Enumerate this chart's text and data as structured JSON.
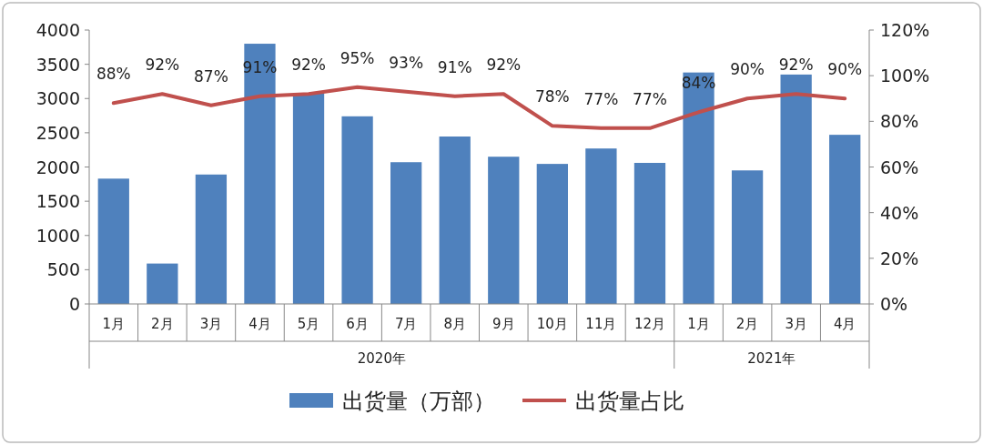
{
  "chart_data": {
    "type": "bar",
    "categories": [
      "1月",
      "2月",
      "3月",
      "4月",
      "5月",
      "6月",
      "7月",
      "8月",
      "9月",
      "10月",
      "11月",
      "12月",
      "1月",
      "2月",
      "3月",
      "4月"
    ],
    "annotations": [
      "2020年",
      "2021年"
    ],
    "series": [
      {
        "name": "出货量（万部）",
        "color": "#4f81bd",
        "values": [
          1830,
          590,
          1890,
          3800,
          3080,
          2740,
          2070,
          2445,
          2150,
          2045,
          2270,
          2060,
          3380,
          1950,
          3350,
          2470
        ]
      },
      {
        "name": "出货量占比",
        "type": "line",
        "axis": "y2",
        "color": "#c0504d",
        "values": [
          88,
          92,
          87,
          91,
          92,
          95,
          93,
          91,
          92,
          78,
          77,
          77,
          84,
          90,
          92,
          90
        ],
        "value_labels": [
          "88%",
          "92%",
          "87%",
          "91%",
          "92%",
          "95%",
          "93%",
          "91%",
          "92%",
          "78%",
          "77%",
          "77%",
          "84%",
          "90%",
          "92%",
          "90%"
        ]
      }
    ],
    "ylim": [
      0,
      4000
    ],
    "yticks": [
      0,
      500,
      1000,
      1500,
      2000,
      2500,
      3000,
      3500,
      4000
    ],
    "y2lim": [
      0,
      120
    ],
    "y2ticks": [
      {
        "value": 0,
        "label": "0%"
      },
      {
        "value": 20,
        "label": "20%"
      },
      {
        "value": 40,
        "label": "40%"
      },
      {
        "value": 60,
        "label": "60%"
      },
      {
        "value": 80,
        "label": "80%"
      },
      {
        "value": 100,
        "label": "100%"
      },
      {
        "value": 120,
        "label": "120%"
      }
    ],
    "legend": "bottom",
    "grid": false
  }
}
